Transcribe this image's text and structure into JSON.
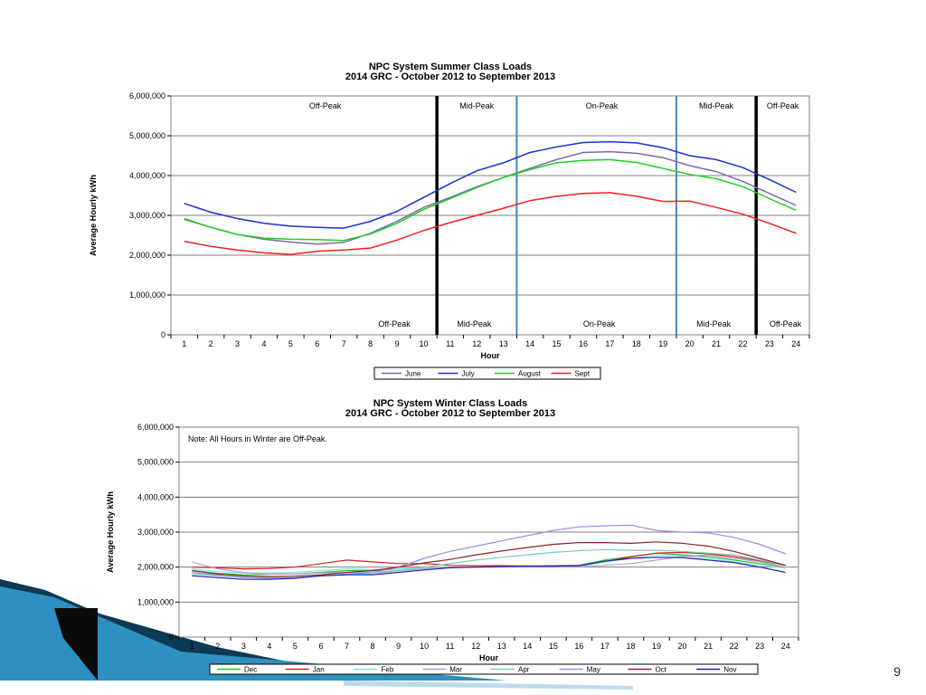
{
  "slide": {
    "page_number": "9"
  },
  "chart_data": [
    {
      "type": "line",
      "title": "NPC System Summer Class Loads",
      "subtitle": "2014 GRC - October 2012 to September 2013",
      "xlabel": "Hour",
      "ylabel": "Average Hourly kWh",
      "x": [
        1,
        2,
        3,
        4,
        5,
        6,
        7,
        8,
        9,
        10,
        11,
        12,
        13,
        14,
        15,
        16,
        17,
        18,
        19,
        20,
        21,
        22,
        23,
        24
      ],
      "ylim": [
        0,
        6000000
      ],
      "yticks": [
        0,
        1000000,
        2000000,
        3000000,
        4000000,
        5000000,
        6000000
      ],
      "ytick_labels": [
        "0",
        "1,000,000",
        "2,000,000",
        "3,000,000",
        "4,000,000",
        "5,000,000",
        "6,000,000"
      ],
      "grid": true,
      "legend": "bottom",
      "dividers": [
        {
          "x": 10.5,
          "style": "black"
        },
        {
          "x": 13.5,
          "style": "blue"
        },
        {
          "x": 19.5,
          "style": "blue"
        },
        {
          "x": 22.5,
          "style": "black"
        }
      ],
      "zones_top": [
        {
          "label": "Off-Peak",
          "x": 6.3
        },
        {
          "label": "Mid-Peak",
          "x": 12.0
        },
        {
          "label": "On-Peak",
          "x": 16.7
        },
        {
          "label": "Mid-Peak",
          "x": 21.0
        },
        {
          "label": "Off-Peak",
          "x": 23.5
        }
      ],
      "zones_bottom": [
        {
          "label": "Off-Peak",
          "x": 8.9
        },
        {
          "label": "Mid-Peak",
          "x": 11.9
        },
        {
          "label": "On-Peak",
          "x": 16.6
        },
        {
          "label": "Mid-Peak",
          "x": 20.9
        },
        {
          "label": "Off-Peak",
          "x": 23.6
        }
      ],
      "series": [
        {
          "name": "June",
          "color": "#7a6aa8",
          "values": [
            2900000,
            2700000,
            2520000,
            2400000,
            2330000,
            2280000,
            2320000,
            2550000,
            2850000,
            3200000,
            3450000,
            3720000,
            3950000,
            4180000,
            4400000,
            4580000,
            4600000,
            4560000,
            4450000,
            4250000,
            4100000,
            3850000,
            3550000,
            3250000
          ]
        },
        {
          "name": "July",
          "color": "#1f2fd0",
          "values": [
            3300000,
            3080000,
            2920000,
            2800000,
            2730000,
            2700000,
            2680000,
            2850000,
            3100000,
            3450000,
            3800000,
            4120000,
            4320000,
            4580000,
            4720000,
            4830000,
            4850000,
            4820000,
            4700000,
            4500000,
            4400000,
            4200000,
            3900000,
            3580000
          ]
        },
        {
          "name": "August",
          "color": "#22d022",
          "values": [
            2920000,
            2700000,
            2520000,
            2430000,
            2400000,
            2390000,
            2370000,
            2530000,
            2800000,
            3150000,
            3420000,
            3700000,
            3950000,
            4150000,
            4320000,
            4380000,
            4400000,
            4330000,
            4180000,
            4030000,
            3920000,
            3720000,
            3420000,
            3130000
          ]
        },
        {
          "name": "Sept",
          "color": "#ee2020",
          "values": [
            2350000,
            2220000,
            2130000,
            2060000,
            2020000,
            2100000,
            2130000,
            2180000,
            2380000,
            2620000,
            2820000,
            3000000,
            3180000,
            3370000,
            3480000,
            3550000,
            3570000,
            3480000,
            3350000,
            3360000,
            3200000,
            3030000,
            2800000,
            2550000
          ]
        }
      ]
    },
    {
      "type": "line",
      "title": "NPC System Winter Class Loads",
      "subtitle": "2014 GRC - October 2012 to September 2013",
      "xlabel": "Hour",
      "ylabel": "Average Hourly kWh",
      "note": "Note: All Hours in Winter are Off-Peak.",
      "x": [
        1,
        2,
        3,
        4,
        5,
        6,
        7,
        8,
        9,
        10,
        11,
        12,
        13,
        14,
        15,
        16,
        17,
        18,
        19,
        20,
        21,
        22,
        23,
        24
      ],
      "ylim": [
        0,
        6000000
      ],
      "yticks": [
        0,
        1000000,
        2000000,
        3000000,
        4000000,
        5000000,
        6000000
      ],
      "ytick_labels": [
        "0",
        "1,000,000",
        "2,000,000",
        "3,000,000",
        "4,000,000",
        "5,000,000",
        "6,000,000"
      ],
      "grid": true,
      "legend": "bottom",
      "series": [
        {
          "name": "Dec",
          "color": "#22cc22",
          "values": [
            1900000,
            1820000,
            1780000,
            1800000,
            1800000,
            1850000,
            1900000,
            1900000,
            1950000,
            1990000,
            2000000,
            2000000,
            2010000,
            2020000,
            2040000,
            2050000,
            2200000,
            2300000,
            2400000,
            2350000,
            2300000,
            2200000,
            2100000,
            2000000
          ]
        },
        {
          "name": "Jan",
          "color": "#d42020",
          "values": [
            2000000,
            1980000,
            1950000,
            1960000,
            2000000,
            2100000,
            2200000,
            2150000,
            2100000,
            2100000,
            2050000,
            2040000,
            2040000,
            2030000,
            2030000,
            2040000,
            2150000,
            2300000,
            2400000,
            2420000,
            2380000,
            2300000,
            2180000,
            2050000
          ]
        },
        {
          "name": "Feb",
          "color": "#88e0f0",
          "values": [
            1950000,
            1870000,
            1830000,
            1830000,
            1850000,
            1900000,
            1950000,
            1930000,
            1950000,
            1980000,
            2000000,
            2000000,
            2000000,
            2000000,
            2000000,
            2000000,
            2150000,
            2250000,
            2350000,
            2320000,
            2250000,
            2150000,
            2050000,
            1970000
          ]
        },
        {
          "name": "Mar",
          "color": "#b7a0cc",
          "values": [
            2150000,
            1950000,
            1850000,
            1800000,
            1800000,
            1830000,
            1850000,
            1850000,
            1900000,
            1950000,
            2000000,
            2000000,
            2000000,
            2000000,
            2000000,
            2000000,
            2050000,
            2100000,
            2200000,
            2300000,
            2350000,
            2250000,
            2150000,
            2000000
          ]
        },
        {
          "name": "Apr",
          "color": "#80c8c0",
          "values": [
            1800000,
            1750000,
            1720000,
            1700000,
            1700000,
            1750000,
            1800000,
            1800000,
            1900000,
            2000000,
            2100000,
            2200000,
            2280000,
            2350000,
            2420000,
            2470000,
            2500000,
            2480000,
            2480000,
            2450000,
            2400000,
            2350000,
            2200000,
            2050000
          ]
        },
        {
          "name": "May",
          "color": "#9090e8",
          "values": [
            1850000,
            1760000,
            1700000,
            1680000,
            1700000,
            1750000,
            1800000,
            1850000,
            2000000,
            2250000,
            2450000,
            2600000,
            2750000,
            2900000,
            3050000,
            3150000,
            3180000,
            3200000,
            3050000,
            3000000,
            2980000,
            2850000,
            2650000,
            2380000
          ]
        },
        {
          "name": "Oct",
          "color": "#8a2424",
          "values": [
            1900000,
            1800000,
            1750000,
            1730000,
            1740000,
            1780000,
            1850000,
            1900000,
            2000000,
            2120000,
            2220000,
            2350000,
            2460000,
            2560000,
            2650000,
            2700000,
            2700000,
            2680000,
            2720000,
            2680000,
            2600000,
            2450000,
            2250000,
            2050000
          ]
        },
        {
          "name": "Nov",
          "color": "#2020b0",
          "values": [
            1750000,
            1700000,
            1650000,
            1650000,
            1680000,
            1750000,
            1780000,
            1780000,
            1850000,
            1920000,
            1980000,
            2000000,
            2020000,
            2030000,
            2030000,
            2040000,
            2170000,
            2250000,
            2280000,
            2270000,
            2200000,
            2130000,
            2000000,
            1850000
          ]
        }
      ]
    }
  ]
}
